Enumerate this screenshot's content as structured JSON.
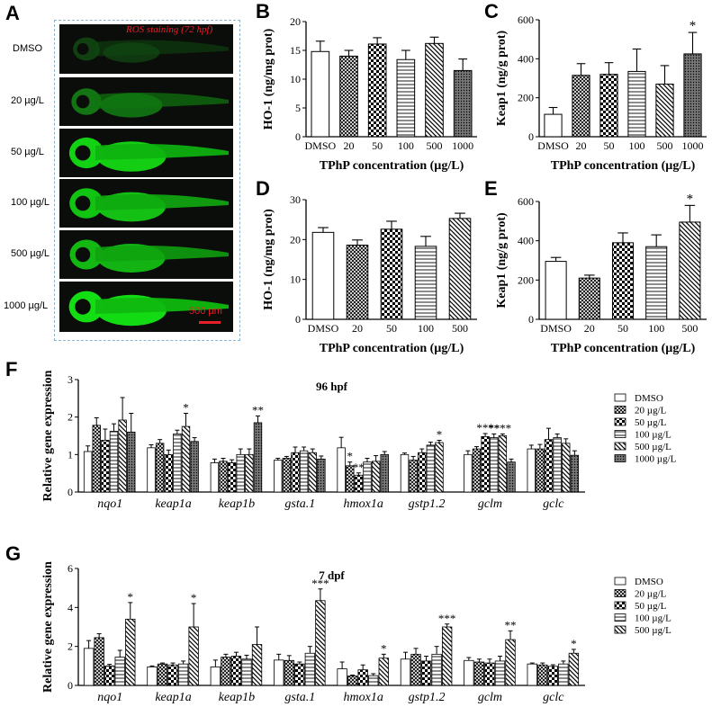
{
  "panel_letters": {
    "a": "A",
    "b": "B",
    "c": "C",
    "d": "D",
    "e": "E",
    "f": "F",
    "g": "G"
  },
  "fish_panel": {
    "title": "ROS staining (72 hpf)",
    "scale_bar": "500 µm",
    "rows": [
      {
        "label": "DMSO",
        "intensity": 0.15
      },
      {
        "label": "20 µg/L",
        "intensity": 0.45
      },
      {
        "label": "50 µg/L",
        "intensity": 0.85
      },
      {
        "label": "100 µg/L",
        "intensity": 0.8
      },
      {
        "label": "500 µg/L",
        "intensity": 0.75
      },
      {
        "label": "1000 µg/L",
        "intensity": 0.9
      }
    ]
  },
  "chart_data": [
    {
      "id": "B",
      "type": "bar",
      "categories": [
        "DMSO",
        "20",
        "50",
        "100",
        "500",
        "1000"
      ],
      "values": [
        14.8,
        14.0,
        16.1,
        13.4,
        16.2,
        11.5
      ],
      "errors": [
        1.8,
        1.0,
        1.1,
        1.6,
        1.1,
        2.0
      ],
      "xlabel": "TPhP concentration (µg/L)",
      "ylabel": "HO-1 (ng/mg prot)",
      "ylim": [
        0,
        20
      ],
      "yticks": [
        0,
        5,
        10,
        15,
        20
      ],
      "sig": [
        "",
        "",
        "",
        "",
        "",
        ""
      ],
      "patterns": [
        "white",
        "cross",
        "check",
        "hline",
        "diag",
        "dots"
      ]
    },
    {
      "id": "C",
      "type": "bar",
      "categories": [
        "DMSO",
        "20",
        "50",
        "100",
        "500",
        "1000"
      ],
      "values": [
        115,
        315,
        320,
        335,
        270,
        425
      ],
      "errors": [
        35,
        60,
        60,
        115,
        95,
        110
      ],
      "xlabel": "TPhP concentration (µg/L)",
      "ylabel": "Keap1 (ng/g prot)",
      "ylim": [
        0,
        600
      ],
      "yticks": [
        0,
        200,
        400,
        600
      ],
      "sig": [
        "",
        "",
        "",
        "",
        "",
        "*"
      ],
      "patterns": [
        "white",
        "cross",
        "check",
        "hline",
        "diag",
        "dots"
      ]
    },
    {
      "id": "D",
      "type": "bar",
      "categories": [
        "DMSO",
        "20",
        "50",
        "100",
        "500"
      ],
      "values": [
        21.8,
        18.6,
        22.6,
        18.3,
        25.3
      ],
      "errors": [
        1.2,
        1.3,
        2.0,
        2.5,
        1.3
      ],
      "xlabel": "TPhP concentration (µg/L)",
      "ylabel": "HO-1 (ng/mg prot)",
      "ylim": [
        0,
        30
      ],
      "yticks": [
        0,
        10,
        20,
        30
      ],
      "sig": [
        "",
        "",
        "",
        "",
        ""
      ],
      "patterns": [
        "white",
        "cross",
        "check",
        "hline",
        "diag"
      ]
    },
    {
      "id": "E",
      "type": "bar",
      "categories": [
        "DMSO",
        "20",
        "50",
        "100",
        "500"
      ],
      "values": [
        295,
        210,
        390,
        370,
        495
      ],
      "errors": [
        20,
        15,
        50,
        60,
        85
      ],
      "xlabel": "TPhP concentration (µg/L)",
      "ylabel": "Keap1 (ng/g prot)",
      "ylim": [
        0,
        600
      ],
      "yticks": [
        0,
        200,
        400,
        600
      ],
      "sig": [
        "",
        "",
        "",
        "",
        "*"
      ],
      "patterns": [
        "white",
        "cross",
        "check",
        "hline",
        "diag"
      ]
    },
    {
      "id": "F",
      "type": "bar",
      "title": "96 hpf",
      "categories": [
        "nqo1",
        "keap1a",
        "keap1b",
        "gsta.1",
        "hmox1a",
        "gstp1.2",
        "gclm",
        "gclc"
      ],
      "ylabel": "Relative gene expression",
      "ylim": [
        0,
        3
      ],
      "yticks": [
        0,
        1,
        2,
        3
      ],
      "series": [
        {
          "name": "DMSO",
          "values": [
            1.08,
            1.18,
            0.78,
            0.85,
            1.18,
            1.0,
            1.0,
            1.15
          ],
          "errors": [
            0.15,
            0.08,
            0.1,
            0.05,
            0.28,
            0.04,
            0.1,
            0.1
          ],
          "sig": [
            "",
            "",
            "",
            "",
            "",
            "",
            "",
            ""
          ]
        },
        {
          "name": "20 µg/L",
          "values": [
            1.78,
            1.3,
            0.82,
            0.9,
            0.7,
            0.85,
            1.15,
            1.15
          ],
          "errors": [
            0.2,
            0.1,
            0.08,
            0.05,
            0.1,
            0.1,
            0.06,
            0.12
          ],
          "sig": [
            "",
            "",
            "",
            "",
            "*",
            "",
            "",
            ""
          ]
        },
        {
          "name": "50 µg/L",
          "values": [
            1.38,
            1.0,
            0.78,
            1.05,
            0.45,
            1.05,
            1.48,
            1.4
          ],
          "errors": [
            0.3,
            0.12,
            0.08,
            0.15,
            0.06,
            0.1,
            0.08,
            0.3
          ],
          "sig": [
            "",
            "",
            "",
            "",
            "**",
            "",
            "***",
            ""
          ]
        },
        {
          "name": "100 µg/L",
          "values": [
            1.62,
            1.55,
            1.0,
            1.1,
            0.8,
            1.25,
            1.45,
            1.45
          ],
          "errors": [
            0.2,
            0.1,
            0.15,
            0.1,
            0.1,
            0.08,
            0.1,
            0.1
          ],
          "sig": [
            "",
            "",
            "",
            "",
            "",
            "",
            "**",
            ""
          ]
        },
        {
          "name": "500 µg/L",
          "values": [
            1.92,
            1.75,
            1.0,
            1.05,
            0.82,
            1.32,
            1.5,
            1.3
          ],
          "errors": [
            0.6,
            0.35,
            0.15,
            0.1,
            0.15,
            0.06,
            0.05,
            0.12
          ],
          "sig": [
            "",
            "*",
            "",
            "",
            "",
            "*",
            "***",
            ""
          ]
        },
        {
          "name": "1000 µg/L",
          "values": [
            1.6,
            1.35,
            1.85,
            0.88,
            1.0,
            0.0,
            0.8,
            0.98
          ],
          "errors": [
            0.5,
            0.1,
            0.18,
            0.08,
            0.08,
            0.0,
            0.08,
            0.12
          ],
          "sig": [
            "",
            "",
            "**",
            "",
            "",
            "",
            "",
            ""
          ]
        }
      ],
      "patterns": [
        "white",
        "cross",
        "check",
        "hline",
        "diag",
        "dots"
      ]
    },
    {
      "id": "G",
      "type": "bar",
      "title": "7 dpf",
      "categories": [
        "nqo1",
        "keap1a",
        "keap1b",
        "gsta.1",
        "hmox1a",
        "gstp1.2",
        "gclm",
        "gclc"
      ],
      "ylabel": "Relative gene expression",
      "ylim": [
        0,
        6
      ],
      "yticks": [
        0,
        2,
        4,
        6
      ],
      "series": [
        {
          "name": "DMSO",
          "values": [
            1.9,
            0.95,
            0.95,
            1.3,
            0.85,
            1.35,
            1.28,
            1.1
          ],
          "errors": [
            0.4,
            0.05,
            0.35,
            0.3,
            0.35,
            0.35,
            0.15,
            0.05
          ],
          "sig": [
            "",
            "",
            "",
            "",
            "",
            "",
            "",
            ""
          ]
        },
        {
          "name": "20 µg/L",
          "values": [
            2.45,
            1.1,
            1.45,
            1.28,
            0.48,
            1.6,
            1.2,
            1.05
          ],
          "errors": [
            0.2,
            0.05,
            0.15,
            0.25,
            0.05,
            0.3,
            0.15,
            0.1
          ],
          "sig": [
            "",
            "",
            "",
            "",
            "",
            "",
            "",
            ""
          ]
        },
        {
          "name": "50 µg/L",
          "values": [
            1.0,
            1.05,
            1.5,
            1.1,
            0.8,
            1.25,
            1.15,
            0.98
          ],
          "errors": [
            0.08,
            0.1,
            0.2,
            0.1,
            0.25,
            0.25,
            0.2,
            0.08
          ],
          "sig": [
            "",
            "",
            "",
            "",
            "",
            "",
            "",
            ""
          ]
        },
        {
          "name": "100 µg/L",
          "values": [
            1.45,
            1.1,
            1.35,
            1.65,
            0.5,
            1.6,
            1.25,
            1.1
          ],
          "errors": [
            0.35,
            0.15,
            0.2,
            0.35,
            0.1,
            0.4,
            0.25,
            0.15
          ],
          "sig": [
            "",
            "",
            "",
            "",
            "",
            "",
            "",
            ""
          ]
        },
        {
          "name": "500 µg/L",
          "values": [
            3.4,
            3.0,
            2.1,
            4.35,
            1.4,
            3.0,
            2.35,
            1.65
          ],
          "errors": [
            0.85,
            1.2,
            0.9,
            0.6,
            0.2,
            0.15,
            0.45,
            0.2
          ],
          "sig": [
            "*",
            "*",
            "",
            "***",
            "*",
            "***",
            "**",
            "*"
          ]
        }
      ],
      "patterns": [
        "white",
        "cross",
        "check",
        "hline",
        "diag"
      ]
    }
  ]
}
